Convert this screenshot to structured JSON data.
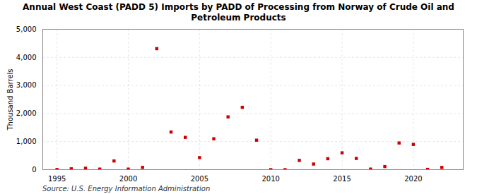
{
  "chart_data": {
    "type": "scatter",
    "title": "Annual West Coast (PADD 5) Imports by PADD of Processing from Norway of Crude Oil and\nPetroleum Products",
    "ylabel": "Thousand Barrels",
    "source": "Source: U.S. Energy Information Administration",
    "x": [
      1995,
      1996,
      1997,
      1998,
      1999,
      2000,
      2001,
      2002,
      2003,
      2004,
      2005,
      2006,
      2007,
      2008,
      2009,
      2010,
      2011,
      2012,
      2013,
      2014,
      2015,
      2016,
      2017,
      2018,
      2019,
      2020,
      2021,
      2022
    ],
    "values": [
      5,
      30,
      50,
      20,
      310,
      20,
      80,
      4310,
      1340,
      1150,
      430,
      1100,
      1880,
      2220,
      1050,
      0,
      0,
      330,
      200,
      390,
      600,
      400,
      20,
      110,
      950,
      900,
      10,
      80
    ],
    "color": "#cc0000",
    "marker": "square",
    "xlim": [
      1994.0,
      2023.5
    ],
    "xticks": [
      1995,
      2000,
      2005,
      2010,
      2015,
      2020
    ],
    "ylim": [
      0,
      5000
    ],
    "yticks": [
      0,
      {
        "value": 1000,
        "label": "1,000"
      },
      {
        "value": 2000,
        "label": "2,000"
      },
      {
        "value": 3000,
        "label": "3,000"
      },
      {
        "value": 4000,
        "label": "4,000"
      },
      {
        "value": 5000,
        "label": "5,000"
      }
    ],
    "grid": true
  }
}
